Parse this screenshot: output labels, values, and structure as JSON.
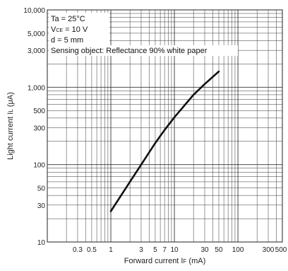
{
  "chart_data": {
    "type": "line",
    "xlabel": "Forward current I",
    "xlabel_sub": "F",
    "xlabel_unit": " (mA)",
    "ylabel": "Light current I",
    "ylabel_sub": "L",
    "ylabel_unit": " (μA)",
    "xscale": "log",
    "yscale": "log",
    "xlim": [
      0.1,
      500
    ],
    "ylim": [
      10,
      10000
    ],
    "grid": true,
    "x_ticks": [
      {
        "value": 0.3,
        "label": "0.3"
      },
      {
        "value": 0.5,
        "label": "0.5"
      },
      {
        "value": 1,
        "label": "1"
      },
      {
        "value": 3,
        "label": "3"
      },
      {
        "value": 5,
        "label": "5"
      },
      {
        "value": 7,
        "label": "7"
      },
      {
        "value": 10,
        "label": "10"
      },
      {
        "value": 30,
        "label": "30"
      },
      {
        "value": 50,
        "label": "50"
      },
      {
        "value": 100,
        "label": "100"
      },
      {
        "value": 300,
        "label": "300"
      },
      {
        "value": 500,
        "label": "500"
      }
    ],
    "y_ticks": [
      {
        "value": 10,
        "label": "10"
      },
      {
        "value": 30,
        "label": "30"
      },
      {
        "value": 50,
        "label": "50"
      },
      {
        "value": 100,
        "label": "100"
      },
      {
        "value": 300,
        "label": "300"
      },
      {
        "value": 500,
        "label": "500"
      },
      {
        "value": 1000,
        "label": "1,000"
      },
      {
        "value": 3000,
        "label": "3,000"
      },
      {
        "value": 5000,
        "label": "5,000"
      },
      {
        "value": 10000,
        "label": "10,000"
      }
    ],
    "legend": {
      "placement": "top-left",
      "lines": [
        {
          "text": "Ta = 25°C"
        },
        {
          "text": "V",
          "sub": "CE",
          "rest": " = 10 V"
        },
        {
          "text": "d = 5 mm"
        },
        {
          "text": "Sensing object: Reflectance 90% white paper"
        }
      ]
    },
    "series": [
      {
        "color": "#111111",
        "x": [
          1,
          2,
          3,
          5,
          7,
          10,
          20,
          30,
          50
        ],
        "y": [
          25,
          60,
          100,
          190,
          280,
          410,
          800,
          1100,
          1600
        ]
      }
    ]
  }
}
